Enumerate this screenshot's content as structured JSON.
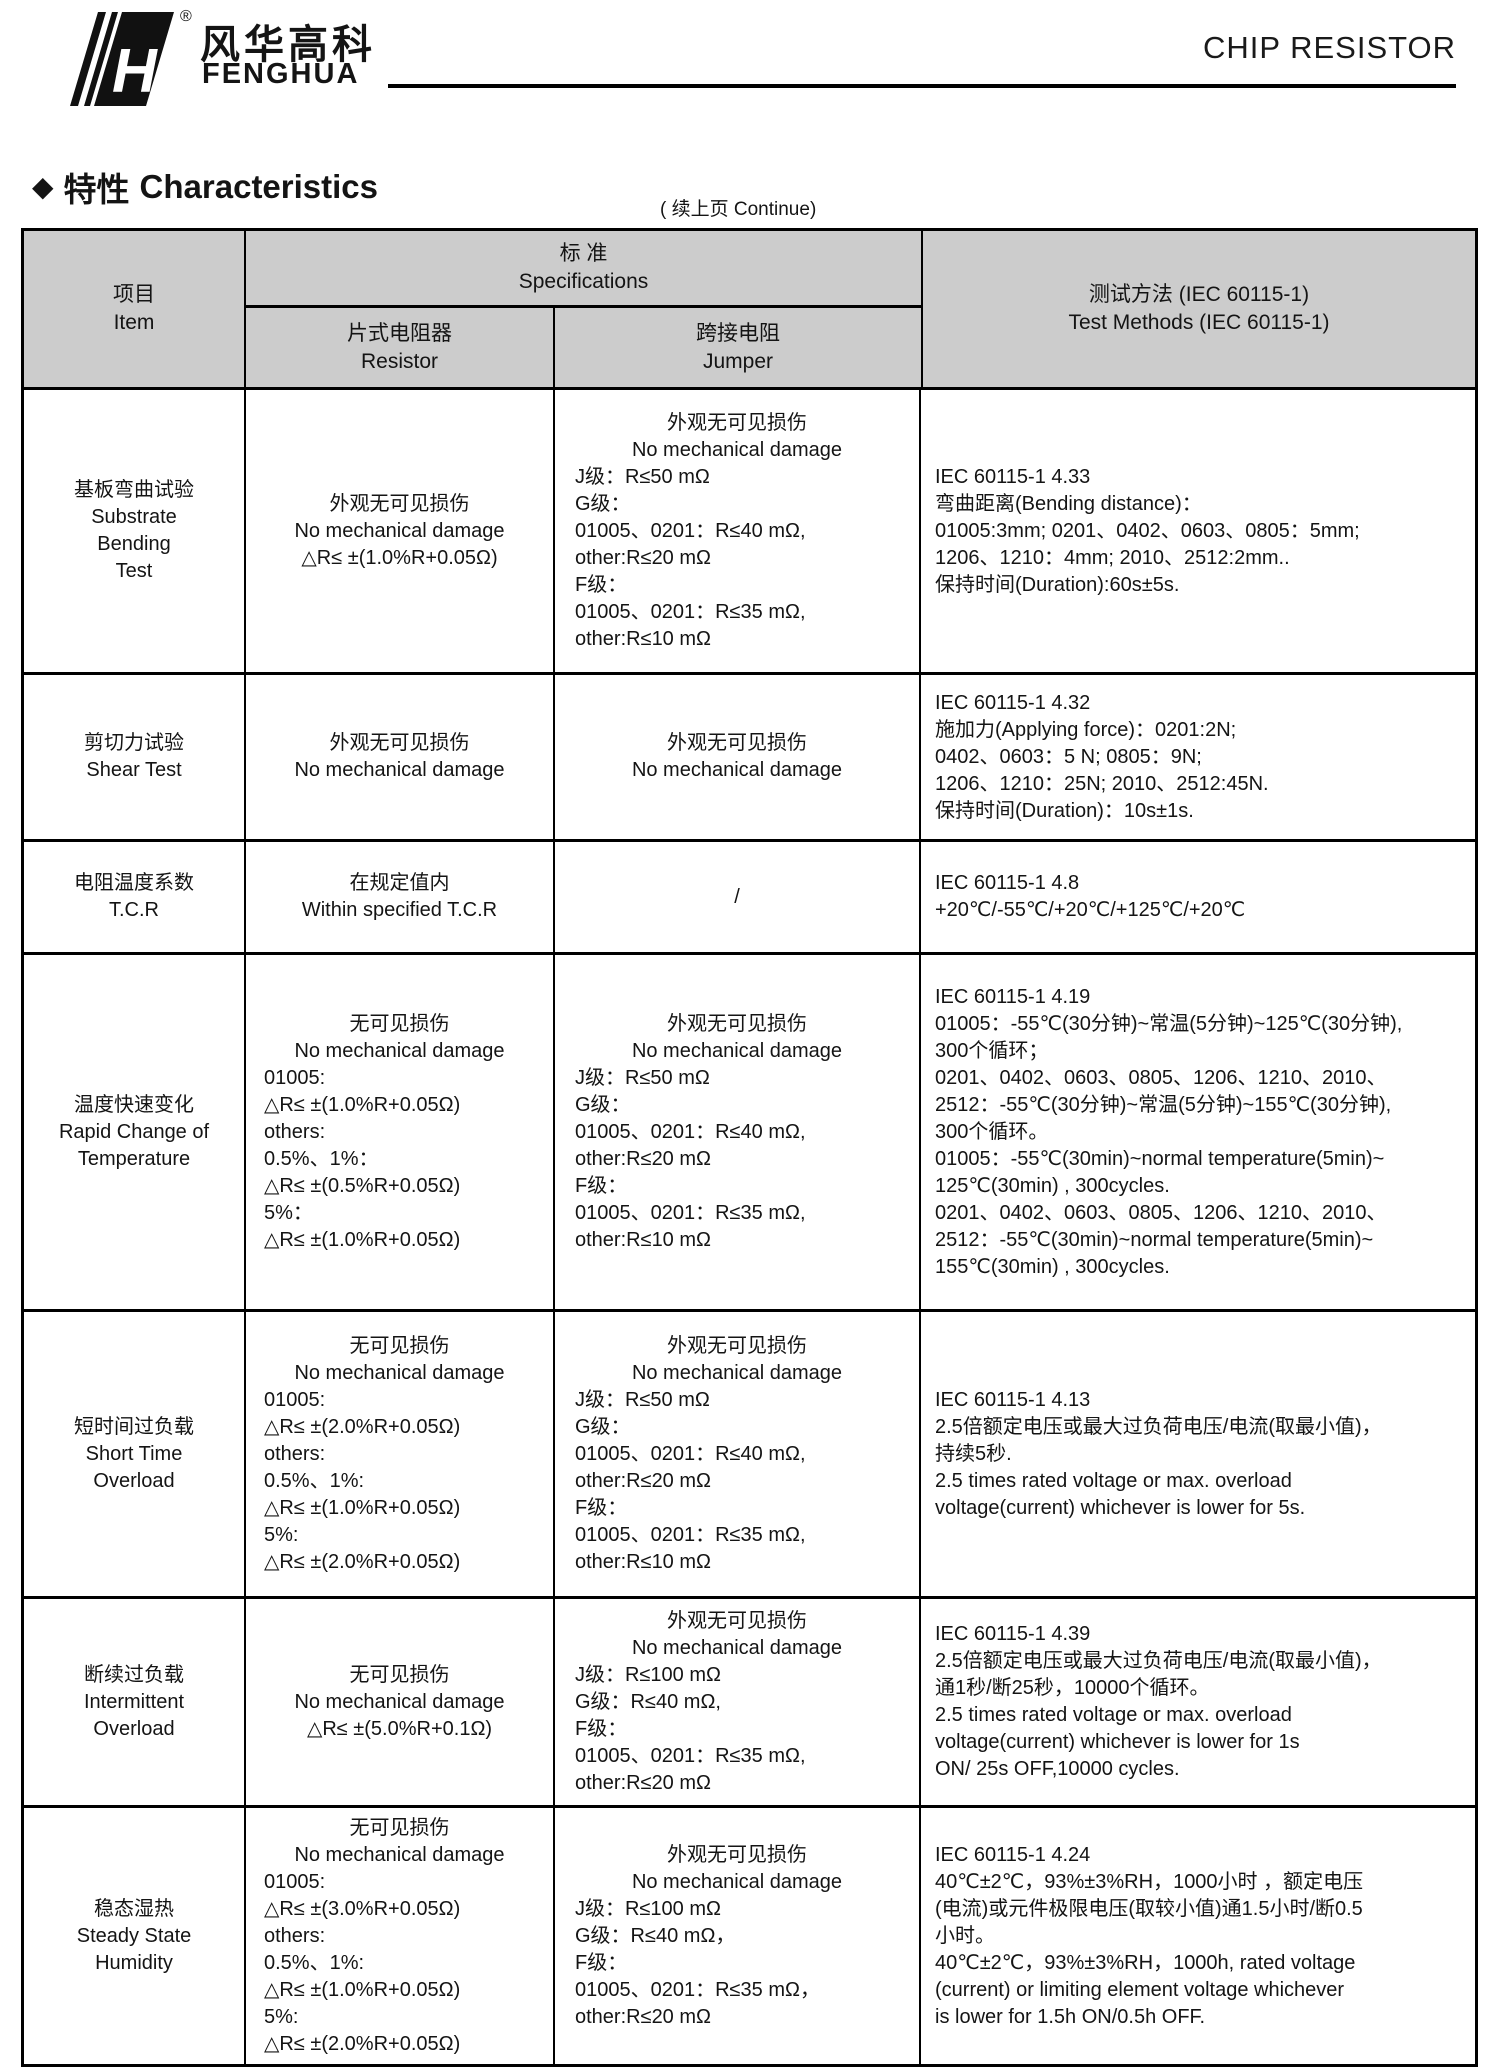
{
  "page": {
    "brand_cn": "风华高科",
    "brand_en": "FENGHUA",
    "registered_mark": "®",
    "product_title": "CHIP RESISTOR",
    "section_marker": "◆",
    "section_title_cn": "特性",
    "section_title_en": "Characteristics",
    "continue_note": "( 续上页 Continue)"
  },
  "colors": {
    "header_bg": "#cccccc",
    "border": "#000000",
    "text": "#141414",
    "page_bg": "#ffffff"
  },
  "table": {
    "header": {
      "item_cn": "项目",
      "item_en": "Item",
      "spec_cn": "标 准",
      "spec_en": "Specifications",
      "resistor_cn": "片式电阻器",
      "resistor_en": "Resistor",
      "jumper_cn": "跨接电阻",
      "jumper_en": "Jumper",
      "test_cn": "测试方法 (IEC 60115-1)",
      "test_en": "Test Methods  (IEC 60115-1)"
    },
    "rows": [
      {
        "item": {
          "lines": [
            "基板弯曲试验",
            "Substrate",
            "Bending",
            "Test"
          ]
        },
        "resistor": {
          "center_lines": [
            "外观无可见损伤",
            "No mechanical damage",
            "△R≤ ±(1.0%R+0.05Ω)"
          ],
          "left_lines": []
        },
        "jumper": {
          "center_lines": [
            "外观无可见损伤",
            "No mechanical damage"
          ],
          "left_lines": [
            "J级：R≤50 mΩ",
            "G级：",
            "01005、0201：R≤40 mΩ,",
            "other:R≤20 mΩ",
            "F级：",
            "01005、0201：R≤35 mΩ,",
            "other:R≤10 mΩ"
          ]
        },
        "test": {
          "lines": [
            "IEC 60115-1 4.33",
            "弯曲距离(Bending distance)：",
            "01005:3mm;  0201、0402、0603、0805：5mm;",
            "1206、1210：4mm;  2010、2512:2mm..",
            "保持时间(Duration):60s±5s."
          ]
        }
      },
      {
        "item": {
          "lines": [
            "剪切力试验",
            "Shear Test"
          ]
        },
        "resistor": {
          "center_lines": [
            "外观无可见损伤",
            "No mechanical damage"
          ],
          "left_lines": []
        },
        "jumper": {
          "center_lines": [
            "外观无可见损伤",
            "No mechanical damage"
          ],
          "left_lines": []
        },
        "test": {
          "lines": [
            "IEC 60115-1 4.32",
            "施加力(Applying force)：0201:2N;",
            "0402、0603：5 N;   0805：9N;",
            "1206、1210：25N;  2010、2512:45N.",
            "保持时间(Duration)：10s±1s."
          ]
        }
      },
      {
        "item": {
          "lines": [
            "电阻温度系数",
            "T.C.R"
          ]
        },
        "resistor": {
          "center_lines": [
            "在规定值内",
            "Within specified T.C.R"
          ],
          "left_lines": []
        },
        "jumper": {
          "center_lines": [
            "/"
          ],
          "left_lines": []
        },
        "test": {
          "lines": [
            "IEC 60115-1 4.8",
            "+20℃/-55℃/+20℃/+125℃/+20℃"
          ]
        }
      },
      {
        "item": {
          "lines": [
            "温度快速变化",
            "Rapid Change of",
            "Temperature"
          ]
        },
        "resistor": {
          "center_lines": [
            "无可见损伤",
            "No mechanical damage"
          ],
          "left_lines": [
            "01005:",
            "△R≤ ±(1.0%R+0.05Ω)",
            "others:",
            "0.5%、1%：",
            "△R≤ ±(0.5%R+0.05Ω)",
            "5%：",
            "△R≤ ±(1.0%R+0.05Ω)"
          ]
        },
        "jumper": {
          "center_lines": [
            "外观无可见损伤",
            "No mechanical damage"
          ],
          "left_lines": [
            "J级：R≤50 mΩ",
            "G级：",
            "01005、0201：R≤40 mΩ,",
            "other:R≤20 mΩ",
            "F级：",
            "01005、0201：R≤35 mΩ,",
            "other:R≤10 mΩ"
          ]
        },
        "test": {
          "lines": [
            "IEC 60115-1 4.19",
            "01005：-55℃(30分钟)~常温(5分钟)~125℃(30分钟),",
            "300个循环；",
            "0201、0402、0603、0805、1206、1210、2010、",
            "2512：-55℃(30分钟)~常温(5分钟)~155℃(30分钟),",
            "300个循环。",
            "01005：-55℃(30min)~normal temperature(5min)~",
            "125℃(30min) , 300cycles.",
            "0201、0402、0603、0805、1206、1210、2010、",
            "2512：-55℃(30min)~normal temperature(5min)~",
            "155℃(30min) , 300cycles."
          ]
        }
      },
      {
        "item": {
          "lines": [
            "短时间过负载",
            "Short Time",
            "Overload"
          ]
        },
        "resistor": {
          "center_lines": [
            "无可见损伤",
            "No mechanical damage"
          ],
          "left_lines": [
            "01005:",
            "△R≤ ±(2.0%R+0.05Ω)",
            "others:",
            "0.5%、1%:",
            "△R≤ ±(1.0%R+0.05Ω)",
            "5%:",
            "△R≤ ±(2.0%R+0.05Ω)"
          ]
        },
        "jumper": {
          "center_lines": [
            "外观无可见损伤",
            "No mechanical damage"
          ],
          "left_lines": [
            "J级：R≤50 mΩ",
            "G级：",
            "01005、0201：R≤40 mΩ,",
            "other:R≤20 mΩ",
            "F级：",
            "01005、0201：R≤35 mΩ,",
            "other:R≤10 mΩ"
          ]
        },
        "test": {
          "lines": [
            "IEC 60115-1 4.13",
            "2.5倍额定电压或最大过负荷电压/电流(取最小值)，",
            "持续5秒.",
            "2.5 times rated voltage  or max. overload",
            "voltage(current) whichever is lower for 5s."
          ]
        }
      },
      {
        "item": {
          "lines": [
            "断续过负载",
            "Intermittent",
            "Overload"
          ]
        },
        "resistor": {
          "center_lines": [
            "无可见损伤",
            "No mechanical damage",
            "△R≤ ±(5.0%R+0.1Ω)"
          ],
          "left_lines": []
        },
        "jumper": {
          "center_lines": [
            "外观无可见损伤",
            "No mechanical damage"
          ],
          "left_lines": [
            "J级：R≤100 mΩ",
            "G级：R≤40 mΩ,",
            "F级：",
            "01005、0201：R≤35 mΩ,",
            "other:R≤20 mΩ"
          ]
        },
        "test": {
          "lines": [
            "IEC 60115-1 4.39",
            "2.5倍额定电压或最大过负荷电压/电流(取最小值)，",
            "通1秒/断25秒，10000个循环。",
            "2.5 times rated voltage  or max. overload",
            "voltage(current) whichever is lower for 1s",
            "ON/ 25s OFF,10000 cycles."
          ]
        }
      },
      {
        "item": {
          "lines": [
            "稳态湿热",
            "Steady State",
            "Humidity"
          ]
        },
        "resistor": {
          "center_lines": [
            "无可见损伤",
            "No mechanical damage"
          ],
          "left_lines": [
            "01005:",
            "△R≤ ±(3.0%R+0.05Ω)",
            "others:",
            "0.5%、1%:",
            "△R≤ ±(1.0%R+0.05Ω)",
            "5%:",
            "△R≤ ±(2.0%R+0.05Ω)"
          ]
        },
        "jumper": {
          "center_lines": [
            "外观无可见损伤",
            "No mechanical damage"
          ],
          "left_lines": [
            "J级：R≤100 mΩ",
            "G级：R≤40 mΩ，",
            "F级：",
            "01005、0201：R≤35 mΩ，",
            "other:R≤20 mΩ"
          ]
        },
        "test": {
          "lines": [
            "IEC 60115-1 4.24",
            "40℃±2℃，93%±3%RH，1000小时 ，额定电压",
            "(电流)或元件极限电压(取较小值)通1.5小时/断0.5",
            "小时。",
            "40℃±2℃，93%±3%RH，1000h, rated voltage",
            "(current) or limiting element voltage whichever",
            "is lower for 1.5h ON/0.5h OFF."
          ]
        }
      }
    ]
  }
}
